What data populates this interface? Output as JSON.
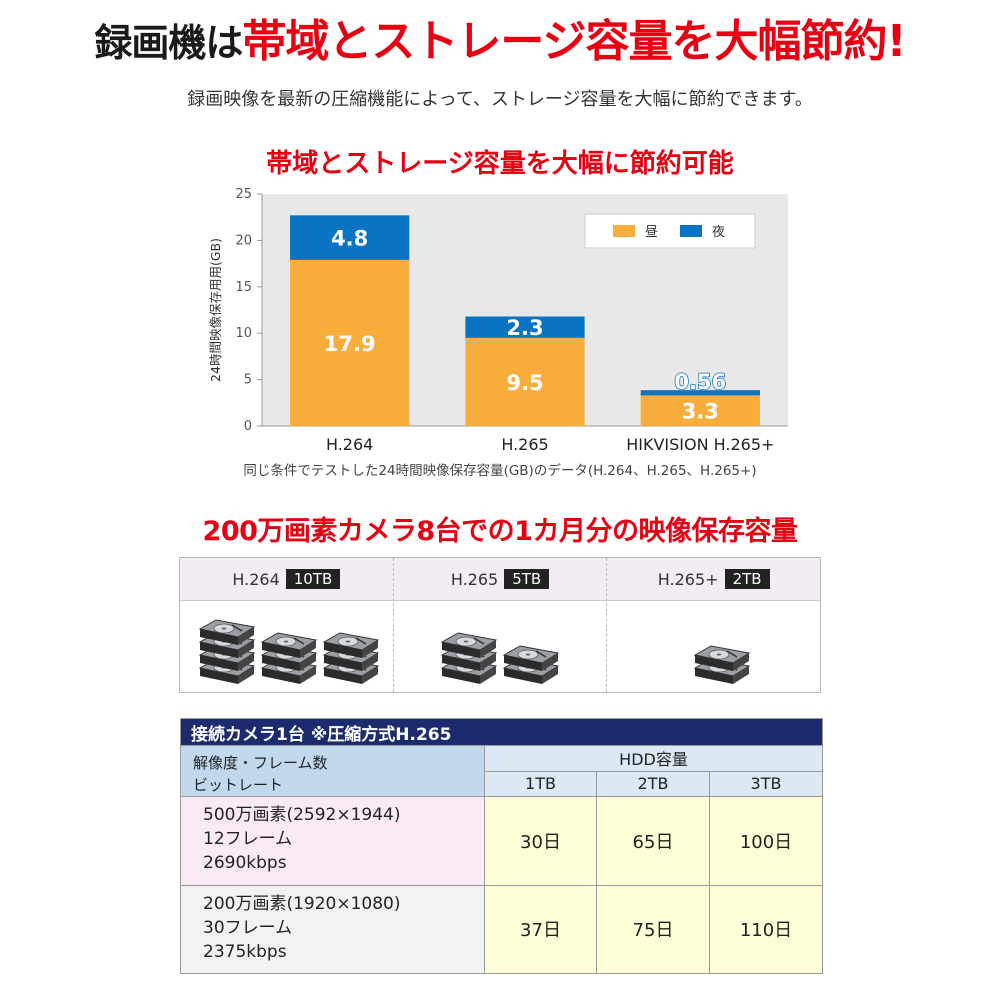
{
  "headline": {
    "part1": "録画機は",
    "part2": "帯域とストレージ容量を大幅節約",
    "exclaim": "!"
  },
  "subline": "録画映像を最新の圧縮機能によって、ストレージ容量を大幅に節約できます。",
  "chart_data": {
    "type": "bar",
    "stacked": true,
    "title": "帯域とストレージ容量を大幅に節約可能",
    "ylabel": "24時間映像保存用用(GB)",
    "xlabel": "",
    "ylim": [
      0,
      25
    ],
    "yticks": [
      0,
      5,
      10,
      15,
      20,
      25
    ],
    "categories": [
      "H.264",
      "H.265",
      "HIKVISION H.265+"
    ],
    "series": [
      {
        "name": "昼",
        "color": "#f9ad3c",
        "values": [
          17.9,
          9.5,
          3.3
        ],
        "labels": [
          "17.9",
          "9.5",
          "3.3"
        ]
      },
      {
        "name": "夜",
        "color": "#0a74c4",
        "values": [
          4.8,
          2.3,
          0.56
        ],
        "labels": [
          "4.8",
          "2.3",
          "0.56"
        ]
      }
    ],
    "legend_position": "top-right",
    "grid": false,
    "caption": "同じ条件でテストした24時間映像保存容量(GB)のデータ(H.264、H.265、H.265+)"
  },
  "storage_section": {
    "title": "200万画素カメラ8台での1カ月分の映像保存容量",
    "columns": [
      {
        "codec": "H.264",
        "size": "10TB",
        "drives": 10
      },
      {
        "codec": "H.265",
        "size": "5TB",
        "drives": 5
      },
      {
        "codec": "H.265+",
        "size": "2TB",
        "drives": 2
      }
    ]
  },
  "capacity_table": {
    "caption": "接続カメラ1台 ※圧縮方式H.265",
    "rowhead_line1": "解像度・フレーム数",
    "rowhead_line2": "ビットレート",
    "hdd_header": "HDD容量",
    "sizes": [
      "1TB",
      "2TB",
      "3TB"
    ],
    "rows": [
      {
        "line1": "500万画素(2592×1944)",
        "line2": "12フレーム",
        "line3": "2690kbps",
        "values": [
          "30日",
          "65日",
          "100日"
        ]
      },
      {
        "line1": "200万画素(1920×1080)",
        "line2": "30フレーム",
        "line3": "2375kbps",
        "values": [
          "37日",
          "75日",
          "110日"
        ]
      }
    ]
  }
}
